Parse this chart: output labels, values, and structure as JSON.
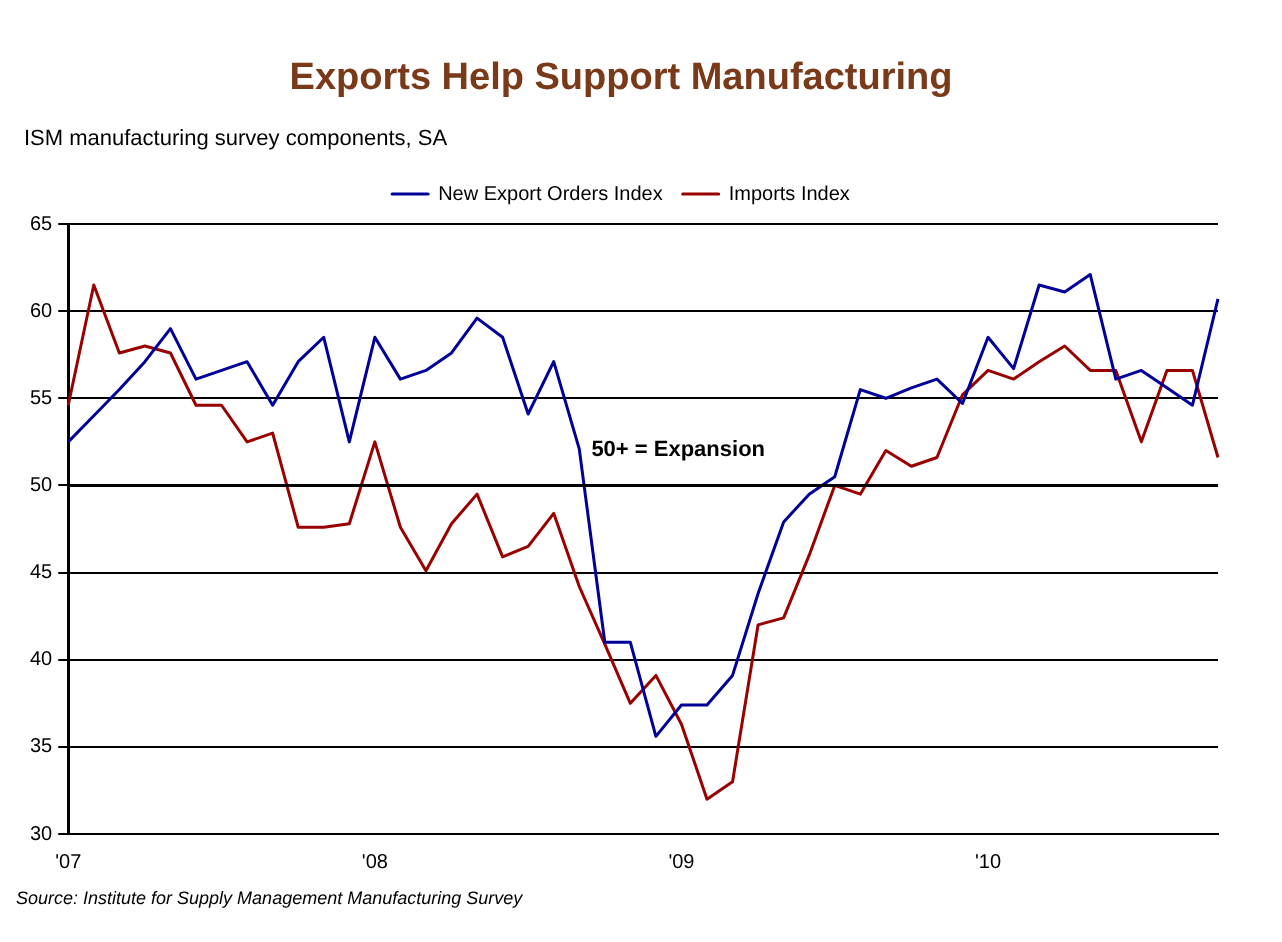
{
  "chart_data": {
    "type": "line",
    "title": "Exports Help Support Manufacturing",
    "subtitle": "ISM manufacturing survey components, SA",
    "categories": [
      "'07",
      null,
      null,
      null,
      null,
      null,
      null,
      null,
      null,
      null,
      null,
      null,
      "'08",
      null,
      null,
      null,
      null,
      null,
      null,
      null,
      null,
      null,
      null,
      null,
      "'09",
      null,
      null,
      null,
      null,
      null,
      null,
      null,
      null,
      null,
      null,
      null,
      "'10",
      null,
      null,
      null,
      null,
      null,
      null,
      null,
      null,
      null
    ],
    "series": [
      {
        "name": "New Export Orders Index",
        "color": "#000099",
        "values": [
          52.5,
          54,
          55.5,
          57.1,
          59.0,
          56.1,
          56.6,
          57.1,
          54.6,
          57.1,
          58.5,
          52.5,
          58.5,
          56.1,
          56.6,
          57.6,
          59.6,
          58.5,
          54.1,
          57.1,
          52.1,
          41.0,
          41.0,
          35.6,
          37.4,
          37.4,
          39.1,
          43.8,
          47.9,
          49.5,
          50.5,
          55.5,
          55.0,
          55.6,
          56.1,
          54.7,
          58.5,
          56.7,
          61.5,
          61.1,
          62.1,
          56.1,
          56.6,
          55.6,
          54.6,
          60.7
        ]
      },
      {
        "name": "Imports Index",
        "color": "#990000",
        "values": [
          54.6,
          61.5,
          57.6,
          58.0,
          57.6,
          54.6,
          54.6,
          52.5,
          53.0,
          47.6,
          47.6,
          47.8,
          52.5,
          47.6,
          45.1,
          47.8,
          49.5,
          45.9,
          46.5,
          48.4,
          44.2,
          40.9,
          37.5,
          39.1,
          36.3,
          32.0,
          33.0,
          42.0,
          42.4,
          46.0,
          50.0,
          49.5,
          52.0,
          51.1,
          51.6,
          55.2,
          56.6,
          56.1,
          57.1,
          58.0,
          56.6,
          56.6,
          52.5,
          56.6,
          56.6,
          51.6
        ]
      }
    ],
    "ylim": [
      30,
      65
    ],
    "yticks": [
      30,
      35,
      40,
      45,
      50,
      55,
      60,
      65
    ],
    "grid": "y",
    "legend": "top",
    "marker": "none",
    "line_style": "solid",
    "ref_lines": [
      {
        "axis": "y",
        "value": 50,
        "label": "50+ = Expansion",
        "color": "#000000"
      }
    ],
    "annotations": [
      "Source: Institute for Supply Management Manufacturing Survey"
    ]
  }
}
